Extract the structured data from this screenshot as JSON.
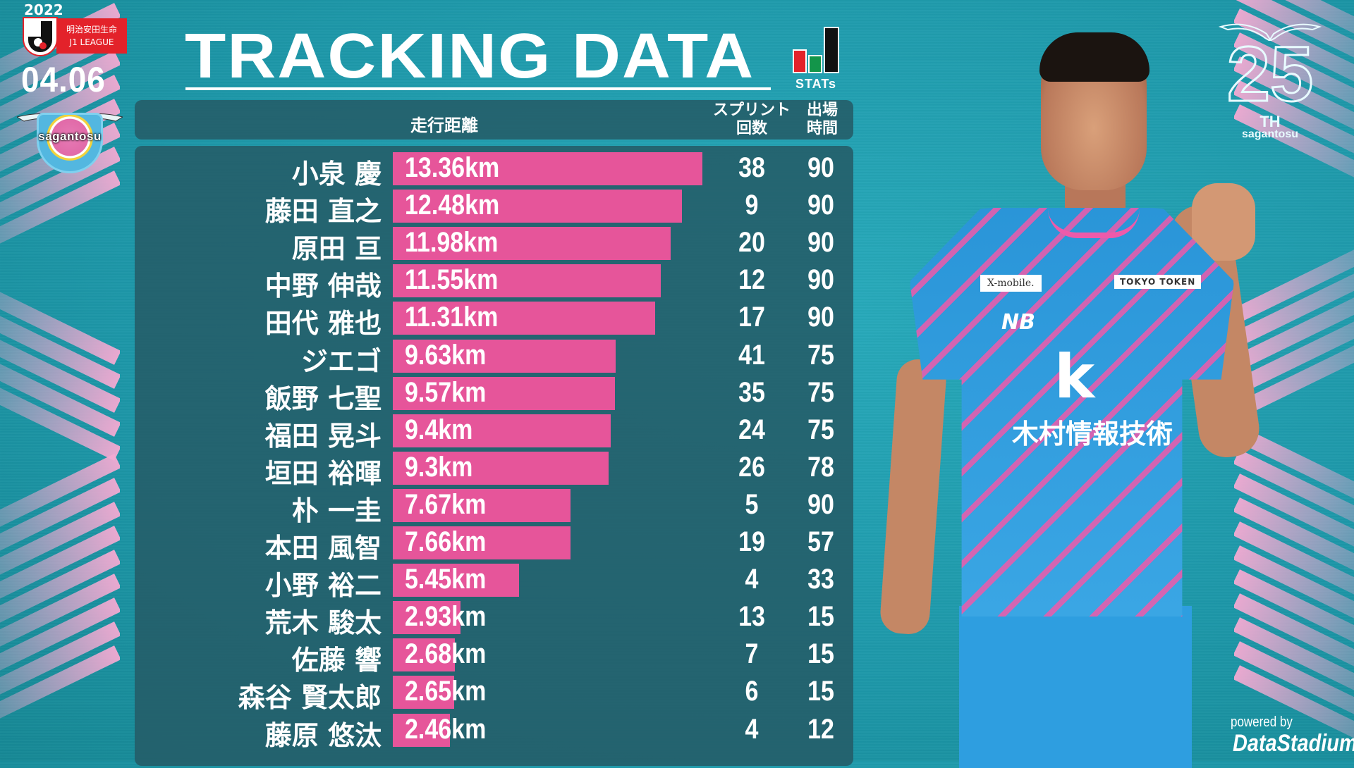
{
  "header": {
    "year": "2022",
    "league_line1": "明治安田生命",
    "league_line2": "J1 LEAGUE",
    "date": "04.06",
    "club_name": "sagantosu",
    "title": "TRACKING DATA",
    "stats_label": "STATs",
    "anniversary_number": "25",
    "anniversary_suffix": "TH",
    "anniversary_club": "sagantosu"
  },
  "columns": {
    "distance": "走行距離",
    "sprint_line1": "スプリント",
    "sprint_line2": "回数",
    "minutes_line1": "出場",
    "minutes_line2": "時間"
  },
  "colors": {
    "bar": "#e6559a",
    "panel": "#245c68",
    "background": "#1f9fb0",
    "accent_pink": "#f4aad2"
  },
  "players": [
    {
      "name": "小泉 慶",
      "distance": "13.36km",
      "km": 13.36,
      "sprints": "38",
      "minutes": "90"
    },
    {
      "name": "藤田 直之",
      "distance": "12.48km",
      "km": 12.48,
      "sprints": "9",
      "minutes": "90"
    },
    {
      "name": "原田 亘",
      "distance": "11.98km",
      "km": 11.98,
      "sprints": "20",
      "minutes": "90"
    },
    {
      "name": "中野 伸哉",
      "distance": "11.55km",
      "km": 11.55,
      "sprints": "12",
      "minutes": "90"
    },
    {
      "name": "田代 雅也",
      "distance": "11.31km",
      "km": 11.31,
      "sprints": "17",
      "minutes": "90"
    },
    {
      "name": "ジエゴ",
      "distance": "9.63km",
      "km": 9.63,
      "sprints": "41",
      "minutes": "75"
    },
    {
      "name": "飯野 七聖",
      "distance": "9.57km",
      "km": 9.57,
      "sprints": "35",
      "minutes": "75"
    },
    {
      "name": "福田 晃斗",
      "distance": "9.4km",
      "km": 9.4,
      "sprints": "24",
      "minutes": "75"
    },
    {
      "name": "垣田 裕暉",
      "distance": "9.3km",
      "km": 9.3,
      "sprints": "26",
      "minutes": "78"
    },
    {
      "name": "朴 一圭",
      "distance": "7.67km",
      "km": 7.67,
      "sprints": "5",
      "minutes": "90"
    },
    {
      "name": "本田 風智",
      "distance": "7.66km",
      "km": 7.66,
      "sprints": "19",
      "minutes": "57"
    },
    {
      "name": "小野 裕二",
      "distance": "5.45km",
      "km": 5.45,
      "sprints": "4",
      "minutes": "33"
    },
    {
      "name": "荒木 駿太",
      "distance": "2.93km",
      "km": 2.93,
      "sprints": "13",
      "minutes": "15"
    },
    {
      "name": "佐藤 響",
      "distance": "2.68km",
      "km": 2.68,
      "sprints": "7",
      "minutes": "15"
    },
    {
      "name": "森谷 賢太郎",
      "distance": "2.65km",
      "km": 2.65,
      "sprints": "6",
      "minutes": "15"
    },
    {
      "name": "藤原 悠汰",
      "distance": "2.46km",
      "km": 2.46,
      "sprints": "4",
      "minutes": "12"
    }
  ],
  "photo": {
    "sponsor_chest": "木村情報技術",
    "sponsor_chest_logo": "k",
    "sponsor_left": "X-mobile.",
    "sponsor_right": "TOKYO TOKEN",
    "kit_maker": "NB"
  },
  "footer": {
    "powered_by": "powered by",
    "provider": "DataStadium"
  },
  "chart_data": {
    "type": "bar",
    "orientation": "horizontal",
    "title": "TRACKING DATA",
    "subtitle": "2022 明治安田生命 J1 LEAGUE 04.06 sagantosu",
    "xlabel": "走行距離",
    "ylabel": "",
    "unit": "km",
    "categories": [
      "小泉 慶",
      "藤田 直之",
      "原田 亘",
      "中野 伸哉",
      "田代 雅也",
      "ジエゴ",
      "飯野 七聖",
      "福田 晃斗",
      "垣田 裕暉",
      "朴 一圭",
      "本田 風智",
      "小野 裕二",
      "荒木 駿太",
      "佐藤 響",
      "森谷 賢太郎",
      "藤原 悠汰"
    ],
    "series": [
      {
        "name": "走行距離 (km)",
        "values": [
          13.36,
          12.48,
          11.98,
          11.55,
          11.31,
          9.63,
          9.57,
          9.4,
          9.3,
          7.67,
          7.66,
          5.45,
          2.93,
          2.68,
          2.65,
          2.46
        ]
      },
      {
        "name": "スプリント回数",
        "values": [
          38,
          9,
          20,
          12,
          17,
          41,
          35,
          24,
          26,
          5,
          19,
          4,
          13,
          7,
          6,
          4
        ]
      },
      {
        "name": "出場時間",
        "values": [
          90,
          90,
          90,
          90,
          90,
          75,
          75,
          75,
          78,
          90,
          57,
          33,
          15,
          15,
          15,
          12
        ]
      }
    ],
    "grid": false,
    "legend": "none",
    "data_labels": true
  }
}
